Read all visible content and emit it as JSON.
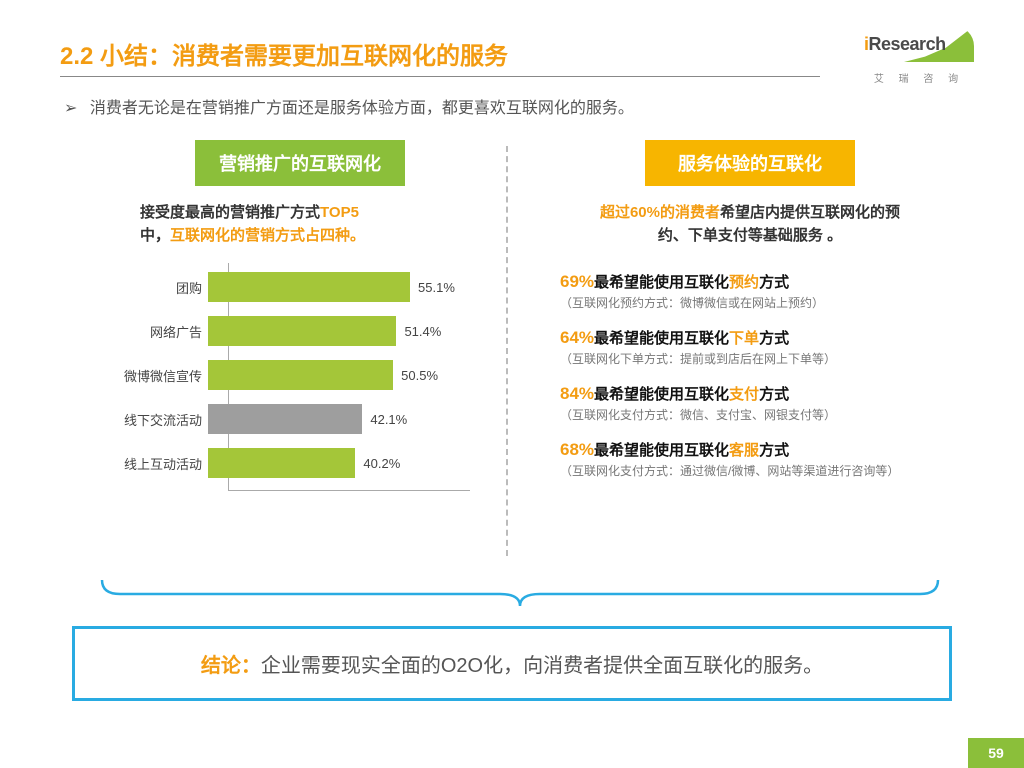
{
  "title": "2.2 小结：消费者需要更加互联网化的服务",
  "logo": {
    "brand": "Research",
    "prefix": "i",
    "sub": "艾 瑞 咨 询"
  },
  "intro": "消费者无论是在营销推广方面还是服务体验方面，都更喜欢互联网化的服务。",
  "colors": {
    "accent_orange": "#f39c12",
    "accent_green": "#8bbf3a",
    "accent_yellow": "#f7b500",
    "accent_blue": "#29abe2",
    "bar_green": "#a4c639",
    "bar_gray": "#9e9e9e",
    "text_dark": "#333333",
    "text_muted": "#777777"
  },
  "left": {
    "header": "营销推广的互联网化",
    "sub_pre": "接受度最高的营销推广方式",
    "sub_hi1": "TOP5",
    "sub_mid": "中，",
    "sub_hi2": "互联网化的营销方式占四种。",
    "chart": {
      "type": "bar",
      "max": 60,
      "items": [
        {
          "label": "团购",
          "value": 55.1,
          "color": "#a4c639"
        },
        {
          "label": "网络广告",
          "value": 51.4,
          "color": "#a4c639"
        },
        {
          "label": "微博微信宣传",
          "value": 50.5,
          "color": "#a4c639"
        },
        {
          "label": "线下交流活动",
          "value": 42.1,
          "color": "#9e9e9e"
        },
        {
          "label": "线上互动活动",
          "value": 40.2,
          "color": "#a4c639"
        }
      ]
    }
  },
  "right": {
    "header": "服务体验的互联化",
    "sub_hi": "超过60%的消费者",
    "sub_rest": "希望店内提供互联网化的预约、下单支付等基础服务 。",
    "stats": [
      {
        "pct": "69%",
        "pre": "最希望能使用互联化",
        "kw": "预约",
        "post": "方式",
        "note": "（互联网化预约方式：微博微信或在网站上预约）"
      },
      {
        "pct": "64%",
        "pre": "最希望能使用互联化",
        "kw": "下单",
        "post": "方式",
        "note": "（互联网化下单方式：提前或到店后在网上下单等）"
      },
      {
        "pct": "84%",
        "pre": "最希望能使用互联化",
        "kw": "支付",
        "post": "方式",
        "note": "（互联网化支付方式：微信、支付宝、网银支付等）"
      },
      {
        "pct": "68%",
        "pre": "最希望能使用互联化",
        "kw": "客服",
        "post": "方式",
        "note": "（互联网化支付方式：通过微信/微博、网站等渠道进行咨询等）"
      }
    ]
  },
  "conclusion": {
    "label": "结论：",
    "text": "企业需要现实全面的O2O化，向消费者提供全面互联化的服务。"
  },
  "page": "59"
}
